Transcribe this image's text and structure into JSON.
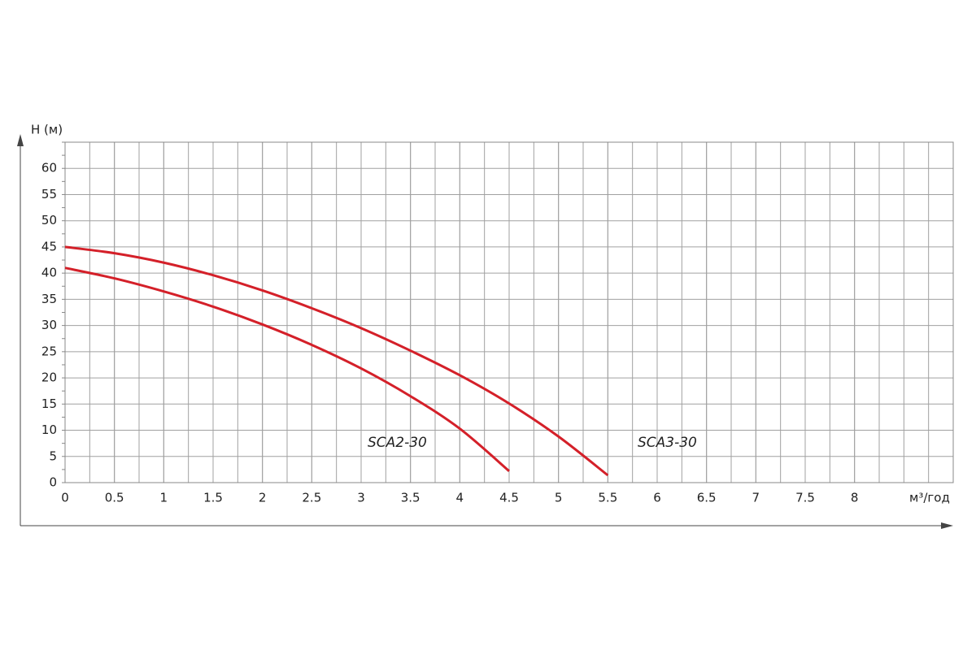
{
  "chart_data": {
    "type": "line",
    "y_label": "H (м)",
    "x_label": "м³/год",
    "xlim": [
      0,
      9
    ],
    "xticks": [
      0,
      0.5,
      1,
      1.5,
      2,
      2.5,
      3,
      3.5,
      4,
      4.5,
      5,
      5.5,
      6,
      6.5,
      7,
      7.5,
      8
    ],
    "ylim": [
      0,
      65
    ],
    "yticks": [
      0,
      5,
      10,
      15,
      20,
      25,
      30,
      35,
      40,
      45,
      50,
      55,
      60
    ],
    "grid": true,
    "series": [
      {
        "name": "SCA2-30",
        "color": "#d42029",
        "x": [
          0,
          0.5,
          1,
          1.5,
          2,
          2.5,
          3,
          3.5,
          4,
          4.5
        ],
        "values": [
          41,
          39,
          36.5,
          33.6,
          30.2,
          26.3,
          21.8,
          16.5,
          10.3,
          2.2
        ]
      },
      {
        "name": "SCA3-30",
        "color": "#d42029",
        "x": [
          0,
          0.5,
          1,
          1.5,
          2,
          2.5,
          3,
          3.5,
          4,
          4.5,
          5,
          5.5
        ],
        "values": [
          45,
          43.8,
          42,
          39.6,
          36.7,
          33.3,
          29.5,
          25.2,
          20.5,
          15.1,
          8.8,
          1.4
        ]
      }
    ]
  }
}
